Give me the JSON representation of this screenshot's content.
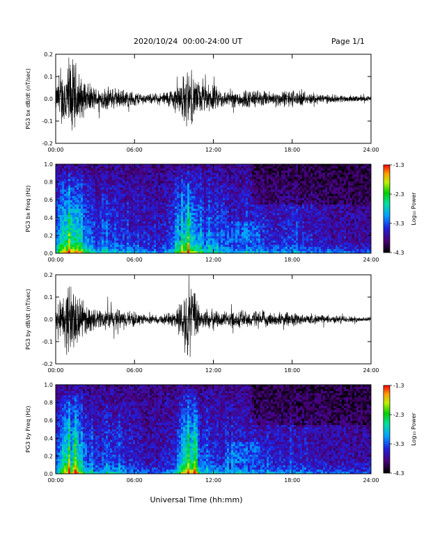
{
  "header": {
    "date_range": "2020/10/24  00:00-24:00 UT",
    "page": "Page 1/1"
  },
  "xlabel": "Universal Time (hh:mm)",
  "colorbar": {
    "label": "Log₁₀ Power",
    "ticks": [
      "-1.3",
      "-2.3",
      "-3.3",
      "-4.3"
    ],
    "range": [
      -4.3,
      -1.3
    ]
  },
  "chart_data": [
    {
      "type": "line",
      "ylabel": "PG3 bx dB/dt (nT/sec)",
      "xlim": [
        0,
        24
      ],
      "ylim": [
        -0.2,
        0.2
      ],
      "x_ticks": [
        "00:00",
        "06:00",
        "12:00",
        "18:00",
        "24:00"
      ],
      "y_ticks": [
        "0.2",
        "0.1",
        "0.0",
        "-0.1",
        "-0.2"
      ],
      "envelope": {
        "hours": [
          0,
          0.5,
          1,
          1.5,
          2,
          3,
          4,
          5,
          6,
          7,
          8,
          9,
          9.5,
          10,
          10.5,
          11,
          12,
          13,
          14,
          15,
          16,
          17,
          18,
          19,
          20,
          21,
          22,
          23,
          24
        ],
        "amplitude": [
          0.06,
          0.15,
          0.22,
          0.2,
          0.1,
          0.06,
          0.06,
          0.05,
          0.04,
          0.025,
          0.03,
          0.06,
          0.1,
          0.15,
          0.12,
          0.08,
          0.07,
          0.04,
          0.05,
          0.05,
          0.04,
          0.04,
          0.05,
          0.03,
          0.03,
          0.02,
          0.02,
          0.015,
          0.015
        ]
      }
    },
    {
      "type": "heatmap",
      "ylabel": "PG3 bx Freq (Hz)",
      "xlim": [
        0,
        24
      ],
      "ylim": [
        0,
        1
      ],
      "x_ticks": [
        "00:00",
        "06:00",
        "12:00",
        "18:00",
        "24:00"
      ],
      "y_ticks": [
        "1.0",
        "0.8",
        "0.6",
        "0.4",
        "0.2",
        "0.0"
      ],
      "zlim": [
        -4.3,
        -1.3
      ]
    },
    {
      "type": "line",
      "ylabel": "PG3 by dB/dt (nT/sec)",
      "xlim": [
        0,
        24
      ],
      "ylim": [
        -0.2,
        0.2
      ],
      "x_ticks": [
        "00:00",
        "06:00",
        "12:00",
        "18:00",
        "24:00"
      ],
      "y_ticks": [
        "0.2",
        "0.1",
        "0.0",
        "-0.1",
        "-0.2"
      ],
      "envelope": {
        "hours": [
          0,
          0.5,
          1,
          1.5,
          2,
          3,
          4,
          5,
          6,
          7,
          8,
          9,
          9.5,
          10,
          10.5,
          11,
          12,
          13,
          14,
          15,
          16,
          17,
          18,
          19,
          20,
          21,
          22,
          23,
          24
        ],
        "amplitude": [
          0.05,
          0.12,
          0.2,
          0.18,
          0.09,
          0.05,
          0.06,
          0.05,
          0.04,
          0.02,
          0.025,
          0.04,
          0.1,
          0.2,
          0.15,
          0.06,
          0.05,
          0.04,
          0.05,
          0.045,
          0.04,
          0.035,
          0.04,
          0.025,
          0.025,
          0.02,
          0.02,
          0.015,
          0.015
        ]
      }
    },
    {
      "type": "heatmap",
      "ylabel": "PG3 by Freq (Hz)",
      "xlim": [
        0,
        24
      ],
      "ylim": [
        0,
        1
      ],
      "x_ticks": [
        "00:00",
        "06:00",
        "12:00",
        "18:00",
        "24:00"
      ],
      "y_ticks": [
        "1.0",
        "0.8",
        "0.6",
        "0.4",
        "0.2",
        "0.0"
      ],
      "zlim": [
        -4.3,
        -1.3
      ]
    }
  ]
}
